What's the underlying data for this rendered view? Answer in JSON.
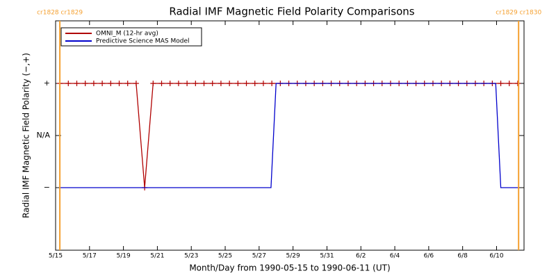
{
  "chart_data": {
    "type": "line",
    "title": "Radial IMF Magnetic Field Polarity Comparisons",
    "x_label": "Month/Day from 1990-05-15 to 1990-06-11 (UT)",
    "y_label": "Radial IMF Magnetic Field Polarity (−,+)",
    "xlim": [
      0,
      27.62
    ],
    "xticks": [
      {
        "value": 0,
        "label": "5/15"
      },
      {
        "value": 2,
        "label": "5/17"
      },
      {
        "value": 4,
        "label": "5/19"
      },
      {
        "value": 6,
        "label": "5/21"
      },
      {
        "value": 8,
        "label": "5/23"
      },
      {
        "value": 10,
        "label": "5/25"
      },
      {
        "value": 12,
        "label": "5/27"
      },
      {
        "value": 14,
        "label": "5/29"
      },
      {
        "value": 16,
        "label": "5/31"
      },
      {
        "value": 18,
        "label": "6/2"
      },
      {
        "value": 20,
        "label": "6/4"
      },
      {
        "value": 22,
        "label": "6/6"
      },
      {
        "value": 24,
        "label": "6/8"
      },
      {
        "value": 26,
        "label": "6/10"
      }
    ],
    "ylim": [
      -2.2,
      2.2
    ],
    "yticks": [
      {
        "value": 1,
        "label": "+"
      },
      {
        "value": 0,
        "label": "N/A"
      },
      {
        "value": -1,
        "label": "−"
      }
    ],
    "boundaries": [
      {
        "x": 0.25,
        "label": "cr1828 cr1829",
        "color": "#f5a030"
      },
      {
        "x": 27.3,
        "label": "cr1829 cr1830",
        "color": "#f5a030"
      }
    ],
    "series": [
      {
        "name": "OMNI_M (12-hr avg)",
        "color": "#b00000",
        "marker": "plus",
        "x": [
          0.25,
          0.75,
          1.25,
          1.75,
          2.25,
          2.75,
          3.25,
          3.75,
          4.25,
          4.75,
          5.25,
          5.75,
          6.25,
          6.75,
          7.25,
          7.75,
          8.25,
          8.75,
          9.25,
          9.75,
          10.25,
          10.75,
          11.25,
          11.75,
          12.25,
          12.75,
          13.25,
          13.75,
          14.25,
          14.75,
          15.25,
          15.75,
          16.25,
          16.75,
          17.25,
          17.75,
          18.25,
          18.75,
          19.25,
          19.75,
          20.25,
          20.75,
          21.25,
          21.75,
          22.25,
          22.75,
          23.25,
          23.75,
          24.25,
          24.75,
          25.25,
          25.75,
          26.25,
          26.75,
          27.25
        ],
        "values": [
          1,
          1,
          1,
          1,
          1,
          1,
          1,
          1,
          1,
          1,
          -1,
          1,
          1,
          1,
          1,
          1,
          1,
          1,
          1,
          1,
          1,
          1,
          1,
          1,
          1,
          1,
          1,
          1,
          1,
          1,
          1,
          1,
          1,
          1,
          1,
          1,
          1,
          1,
          1,
          1,
          1,
          1,
          1,
          1,
          1,
          1,
          1,
          1,
          1,
          1,
          1,
          1,
          1,
          1,
          1
        ]
      },
      {
        "name": "Predictive Science MAS Model",
        "color": "#0000cc",
        "x": [
          0.2,
          12.7,
          13.0,
          25.95,
          26.25,
          27.3
        ],
        "values": [
          -1,
          -1,
          1,
          1,
          -1,
          -1
        ]
      }
    ]
  }
}
